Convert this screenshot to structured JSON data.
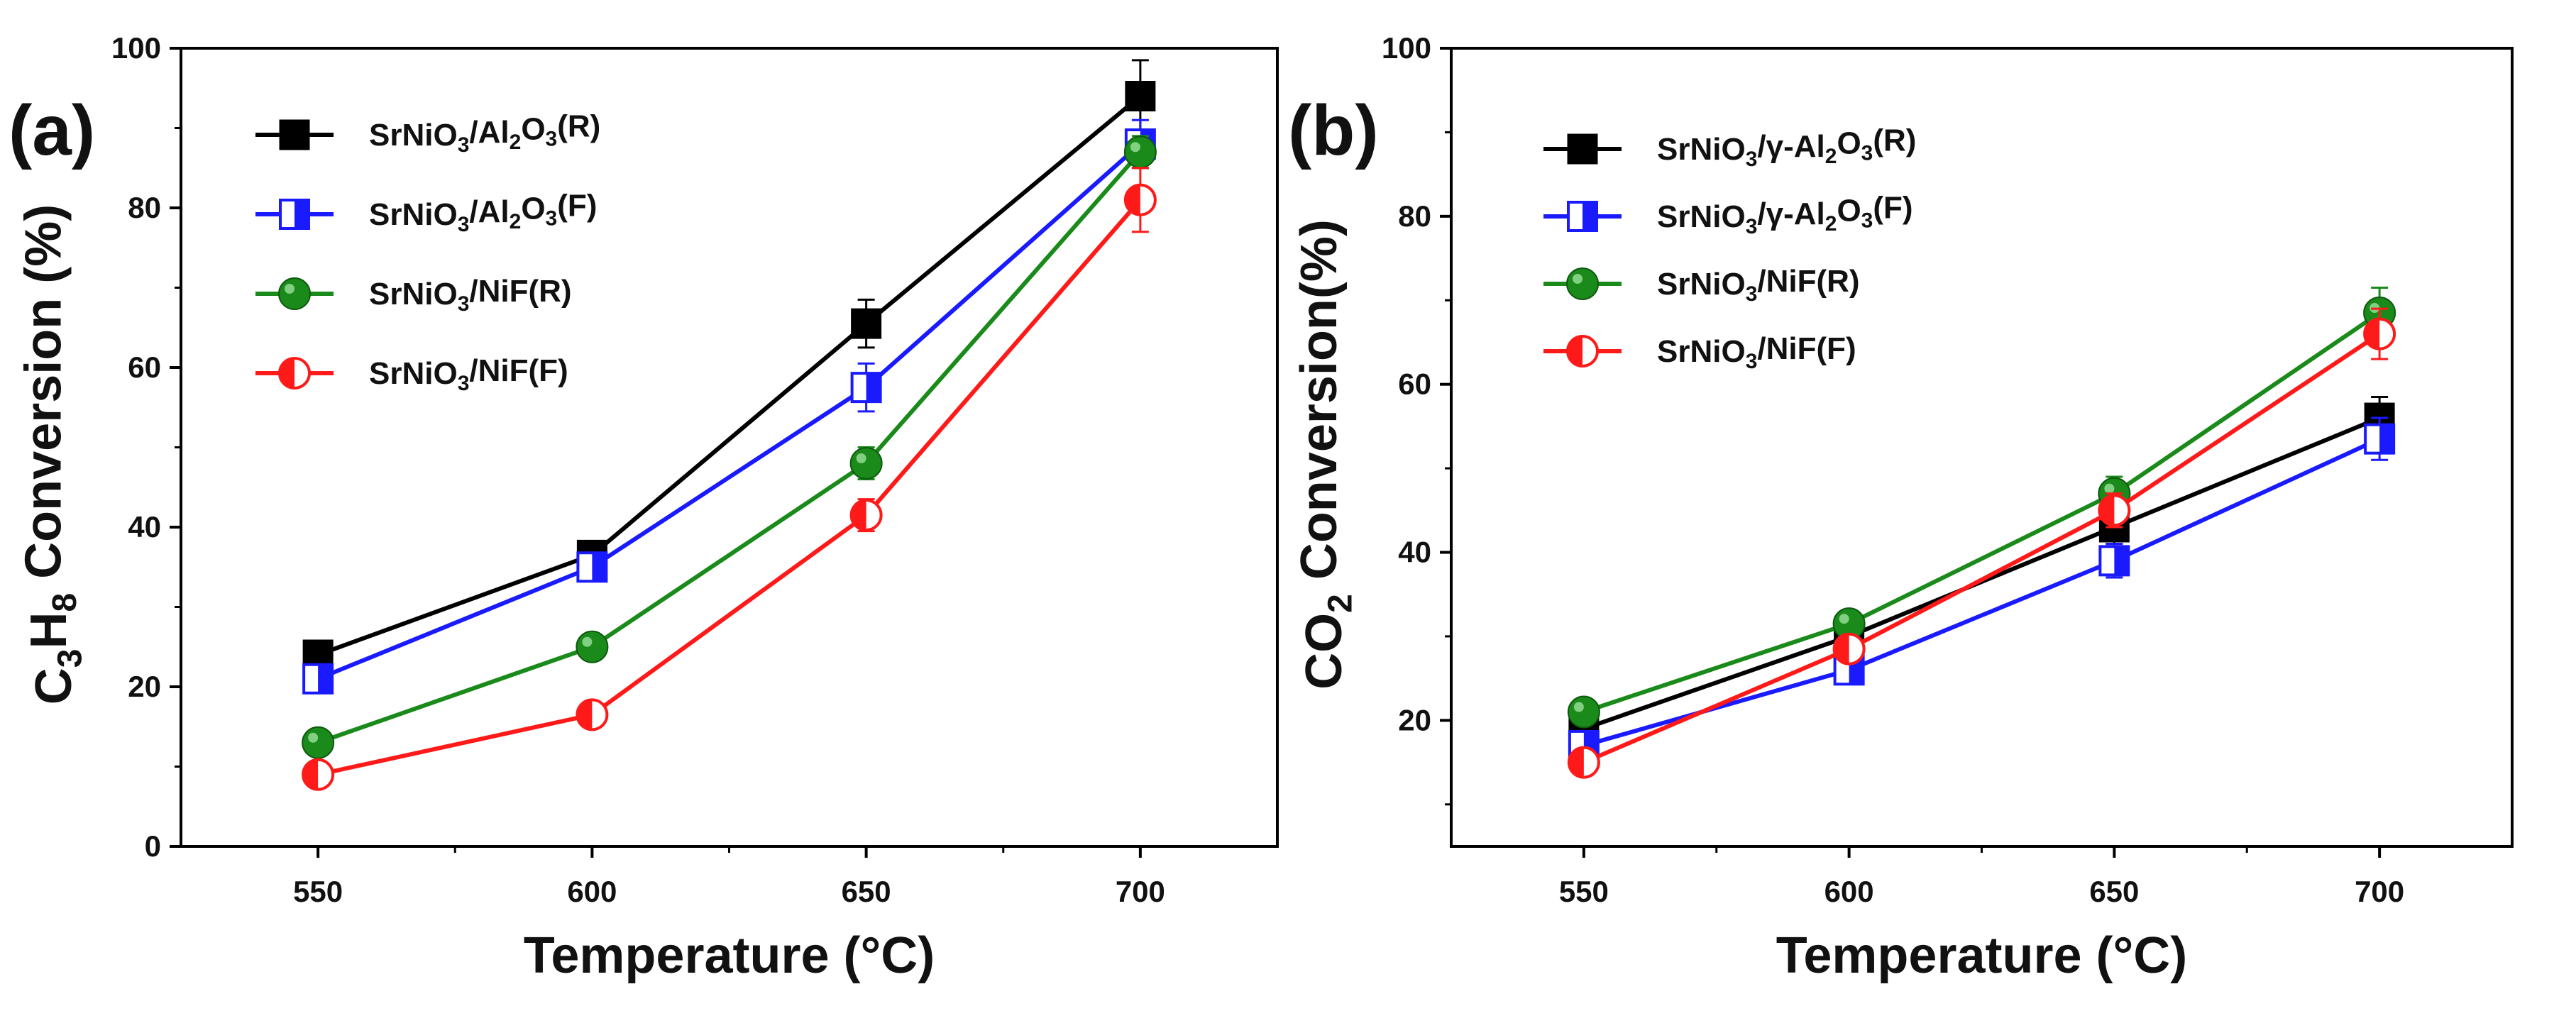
{
  "chart_data": [
    {
      "type": "line",
      "panel_label": "(a)",
      "xlabel": "Temperature (°C)",
      "ylabel_parts": [
        "C",
        "3",
        "H",
        "8",
        " Conversion (%)"
      ],
      "x": [
        550,
        600,
        650,
        700
      ],
      "x_ticks": [
        "550",
        "600",
        "650",
        "700"
      ],
      "xlim": [
        525,
        725
      ],
      "ylim": [
        0,
        100
      ],
      "y_ticks": [
        "0",
        "20",
        "40",
        "60",
        "80",
        "100"
      ],
      "legend_location": "top-left",
      "series": [
        {
          "name": "SrNiO3/Al2O3(R)",
          "label_parts": [
            "SrNiO",
            "3",
            "/Al",
            "2",
            "O",
            "3",
            "(R)"
          ],
          "marker": "square-filled",
          "color": "#000000",
          "values": [
            24,
            36.5,
            65.5,
            94
          ],
          "errors": [
            1,
            1,
            3,
            4.5
          ]
        },
        {
          "name": "SrNiO3/Al2O3(F)",
          "label_parts": [
            "SrNiO",
            "3",
            "/Al",
            "2",
            "O",
            "3",
            "(F)"
          ],
          "marker": "square-half",
          "color": "#1a1aff",
          "values": [
            21,
            35,
            57.5,
            88
          ],
          "errors": [
            1,
            1,
            3,
            3
          ]
        },
        {
          "name": "SrNiO3/NiF(R)",
          "label_parts": [
            "SrNiO",
            "3",
            "/NiF(R)"
          ],
          "marker": "circle-filled",
          "color": "#1a8a1a",
          "values": [
            13,
            25,
            48,
            87
          ],
          "errors": [
            1,
            1,
            2,
            2
          ]
        },
        {
          "name": "SrNiO3/NiF(F)",
          "label_parts": [
            "SrNiO",
            "3",
            "/NiF(F)"
          ],
          "marker": "circle-half",
          "color": "#ff1a1a",
          "values": [
            9,
            16.5,
            41.5,
            81
          ],
          "errors": [
            1,
            1,
            2,
            4
          ]
        }
      ]
    },
    {
      "type": "line",
      "panel_label": "(b)",
      "xlabel": "Temperature (°C)",
      "ylabel_parts": [
        "CO",
        "2",
        " Conversion(%)"
      ],
      "x": [
        550,
        600,
        650,
        700
      ],
      "x_ticks": [
        "550",
        "600",
        "650",
        "700"
      ],
      "xlim": [
        525,
        725
      ],
      "ylim": [
        5,
        100
      ],
      "y_ticks": [
        "20",
        "40",
        "60",
        "80",
        "100"
      ],
      "legend_location": "top-left",
      "series": [
        {
          "name": "SrNiO3/γ-Al2O3(R)",
          "label_parts": [
            "SrNiO",
            "3",
            "/γ-Al",
            "2",
            "O",
            "3",
            "(R)"
          ],
          "marker": "square-filled",
          "color": "#000000",
          "values": [
            19,
            30,
            43,
            56
          ],
          "errors": [
            1,
            1,
            2,
            2.5
          ]
        },
        {
          "name": "SrNiO3/γ-Al2O3(F)",
          "label_parts": [
            "SrNiO",
            "3",
            "/γ-Al",
            "2",
            "O",
            "3",
            "(F)"
          ],
          "marker": "square-half",
          "color": "#1a1aff",
          "values": [
            17,
            26,
            39,
            53.5
          ],
          "errors": [
            1,
            1,
            2,
            2.5
          ]
        },
        {
          "name": "SrNiO3/NiF(R)",
          "label_parts": [
            "SrNiO",
            "3",
            "/NiF(R)"
          ],
          "marker": "circle-filled",
          "color": "#1a8a1a",
          "values": [
            21,
            31.5,
            47,
            68.5
          ],
          "errors": [
            1,
            1,
            2,
            3
          ]
        },
        {
          "name": "SrNiO3/NiF(F)",
          "label_parts": [
            "SrNiO",
            "3",
            "/NiF(F)"
          ],
          "marker": "circle-half",
          "color": "#ff1a1a",
          "values": [
            15,
            28.5,
            45,
            66
          ],
          "errors": [
            1,
            1.5,
            2,
            3
          ]
        }
      ]
    }
  ]
}
